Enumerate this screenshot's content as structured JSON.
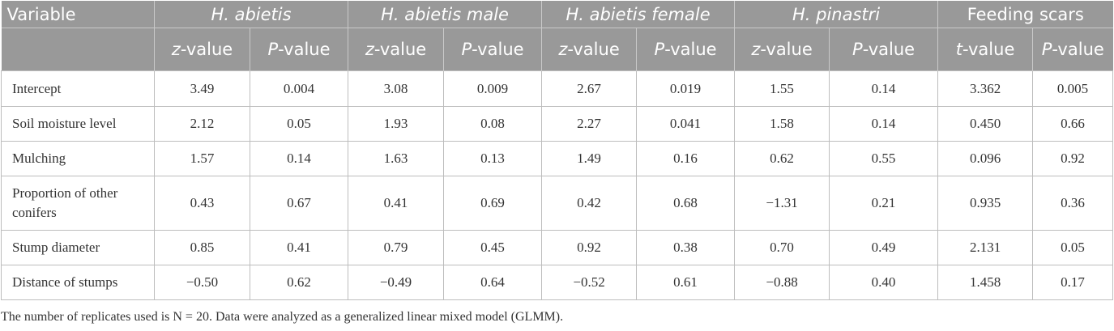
{
  "table": {
    "variable_header": "Variable",
    "groups": [
      "H. abietis",
      "H. abietis male",
      "H. abietis female",
      "H. pinastri",
      "Feeding scars"
    ],
    "subheaders": [
      {
        "italic": "z",
        "rest": "-value"
      },
      {
        "italic": "P",
        "rest": "-value"
      },
      {
        "italic": "z",
        "rest": "-value"
      },
      {
        "italic": "P",
        "rest": "-value"
      },
      {
        "italic": "z",
        "rest": "-value"
      },
      {
        "italic": "P",
        "rest": "-value"
      },
      {
        "italic": "z",
        "rest": "-value"
      },
      {
        "italic": "P",
        "rest": "-value"
      },
      {
        "italic": "t",
        "rest": "-value"
      },
      {
        "italic": "P",
        "rest": "-value"
      }
    ],
    "rows": [
      {
        "label": "Intercept",
        "values": [
          "3.49",
          "0.004",
          "3.08",
          "0.009",
          "2.67",
          "0.019",
          "1.55",
          "0.14",
          "3.362",
          "0.005"
        ]
      },
      {
        "label": "Soil moisture level",
        "values": [
          "2.12",
          "0.05",
          "1.93",
          "0.08",
          "2.27",
          "0.041",
          "1.58",
          "0.14",
          "0.450",
          "0.66"
        ]
      },
      {
        "label": "Mulching",
        "values": [
          "1.57",
          "0.14",
          "1.63",
          "0.13",
          "1.49",
          "0.16",
          "0.62",
          "0.55",
          "0.096",
          "0.92"
        ]
      },
      {
        "label": "Proportion of other conifers",
        "values": [
          "0.43",
          "0.67",
          "0.41",
          "0.69",
          "0.42",
          "0.68",
          "−1.31",
          "0.21",
          "0.935",
          "0.36"
        ]
      },
      {
        "label": "Stump diameter",
        "values": [
          "0.85",
          "0.41",
          "0.79",
          "0.45",
          "0.92",
          "0.38",
          "0.70",
          "0.49",
          "2.131",
          "0.05"
        ]
      },
      {
        "label": "Distance of stumps",
        "values": [
          "−0.50",
          "0.62",
          "−0.49",
          "0.64",
          "−0.52",
          "0.61",
          "−0.88",
          "0.40",
          "1.458",
          "0.17"
        ]
      }
    ]
  },
  "footnote": "The number of replicates used is N = 20. Data were analyzed as a generalized linear mixed model (GLMM)."
}
